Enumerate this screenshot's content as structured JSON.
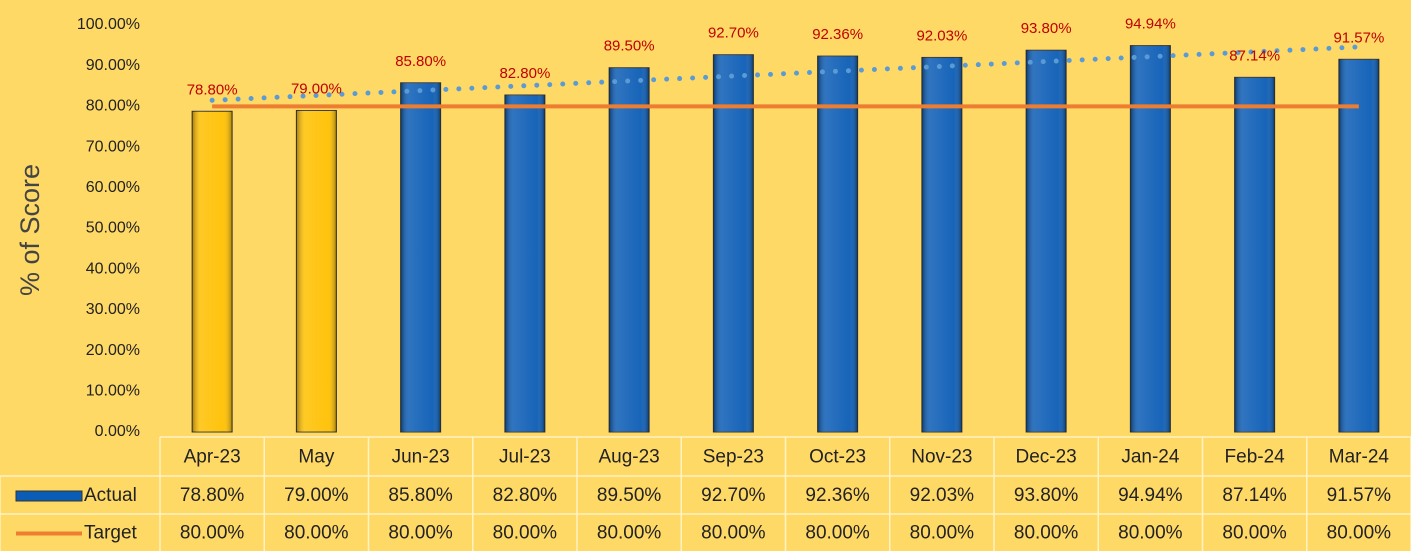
{
  "chart_data": {
    "type": "bar",
    "y_label": "% of Score",
    "categories": [
      "Apr-23",
      "May",
      "Jun-23",
      "Jul-23",
      "Aug-23",
      "Sep-23",
      "Oct-23",
      "Nov-23",
      "Dec-23",
      "Jan-24",
      "Feb-24",
      "Mar-24"
    ],
    "series": [
      {
        "name": "Actual",
        "type": "bar",
        "color": "#0b5cb5",
        "colors": [
          "#ffc000",
          "#ffc000",
          "#0b5cb5",
          "#0b5cb5",
          "#0b5cb5",
          "#0b5cb5",
          "#0b5cb5",
          "#0b5cb5",
          "#0b5cb5",
          "#0b5cb5",
          "#0b5cb5",
          "#0b5cb5"
        ],
        "values": [
          78.8,
          79.0,
          85.8,
          82.8,
          89.5,
          92.7,
          92.36,
          92.03,
          93.8,
          94.94,
          87.14,
          91.57
        ],
        "value_labels": [
          "78.80%",
          "79.00%",
          "85.80%",
          "82.80%",
          "89.50%",
          "92.70%",
          "92.36%",
          "92.03%",
          "93.80%",
          "94.94%",
          "87.14%",
          "91.57%"
        ]
      },
      {
        "name": "Target",
        "type": "line",
        "color": "#ed7d31",
        "values": [
          80,
          80,
          80,
          80,
          80,
          80,
          80,
          80,
          80,
          80,
          80,
          80
        ],
        "value_labels": [
          "80.00%",
          "80.00%",
          "80.00%",
          "80.00%",
          "80.00%",
          "80.00%",
          "80.00%",
          "80.00%",
          "80.00%",
          "80.00%",
          "80.00%",
          "80.00%"
        ]
      }
    ],
    "trendline": {
      "color": "#5b9bd5",
      "style": "dotted",
      "values": [
        81.5,
        94.6
      ]
    },
    "ylim": [
      0,
      100
    ],
    "yticks": [
      {
        "value": 0,
        "label": "0.00%"
      },
      {
        "value": 10,
        "label": "10.00%"
      },
      {
        "value": 20,
        "label": "20.00%"
      },
      {
        "value": 30,
        "label": "30.00%"
      },
      {
        "value": 40,
        "label": "40.00%"
      },
      {
        "value": 50,
        "label": "50.00%"
      },
      {
        "value": 60,
        "label": "60.00%"
      },
      {
        "value": 70,
        "label": "70.00%"
      },
      {
        "value": 80,
        "label": "80.00%"
      },
      {
        "value": 90,
        "label": "90.00%"
      },
      {
        "value": 100,
        "label": "100.00%"
      }
    ],
    "data_table": true
  }
}
